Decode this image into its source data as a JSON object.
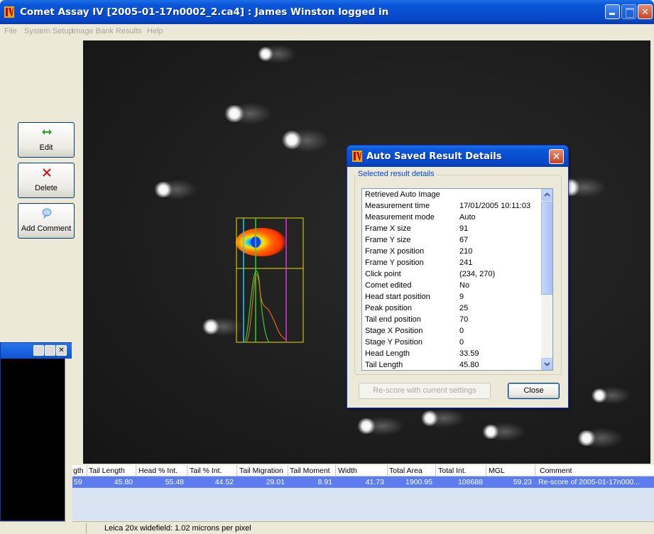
{
  "window": {
    "title": "Comet Assay IV [2005-01-17n0002_2.ca4] : James Winston logged in"
  },
  "menu": [
    "File",
    "System Setup",
    "Image Bank",
    "Results",
    "Help"
  ],
  "sidebar": {
    "edit_label": "Edit",
    "delete_label": "Delete",
    "comment_label": "Add Comment"
  },
  "results_table": {
    "headers": [
      "gth",
      "Tail Length",
      "Head % Int.",
      "Tail % Int.",
      "Tail Migration",
      "Tail Moment",
      "Width",
      "Total Area",
      "Total Int.",
      "MGL",
      "Comment"
    ],
    "row": [
      "59",
      "45.80",
      "55.48",
      "44.52",
      "29.01",
      "8.91",
      "41.73",
      "1900.95",
      "108688",
      "59.23",
      "Re-score of 2005-01-17n000..."
    ]
  },
  "status": {
    "text": "Leica 20x widefield: 1.02 microns per pixel"
  },
  "dialog": {
    "title": "Auto Saved Result Details",
    "group_label": "Selected result details",
    "rows": [
      {
        "key": "Retrieved Auto Image",
        "value": ""
      },
      {
        "key": "Measurement time",
        "value": "17/01/2005 10:11:03"
      },
      {
        "key": "Measurement mode",
        "value": "Auto"
      },
      {
        "key": "Frame X size",
        "value": "91"
      },
      {
        "key": "Frame Y size",
        "value": "67"
      },
      {
        "key": "Frame X position",
        "value": "210"
      },
      {
        "key": "Frame Y position",
        "value": "241"
      },
      {
        "key": "Click point",
        "value": "(234, 270)"
      },
      {
        "key": "Comet edited",
        "value": "No"
      },
      {
        "key": "Head start position",
        "value": "9"
      },
      {
        "key": "Peak position",
        "value": "25"
      },
      {
        "key": "Tail end position",
        "value": "70"
      },
      {
        "key": "Stage X Position",
        "value": "0"
      },
      {
        "key": "Stage Y Position",
        "value": "0"
      },
      {
        "key": "Head Length",
        "value": "33.59"
      },
      {
        "key": "Tail Length",
        "value": "45.80"
      }
    ],
    "rescore_label": "Re-score with current settings",
    "close_label": "Close"
  },
  "colors": {
    "title_blue": "#0a57d9",
    "selection_blue": "#5c7df0",
    "group_label_blue": "#0046d5",
    "edit_icon_green": "#2aa02a",
    "delete_icon_red": "#d01010"
  },
  "icons": [
    "app-logo-icon",
    "edit-arrows-icon",
    "delete-x-icon",
    "comment-bubble-icon",
    "minimize-icon",
    "maximize-icon",
    "close-icon",
    "scroll-up-icon",
    "scroll-down-icon"
  ]
}
